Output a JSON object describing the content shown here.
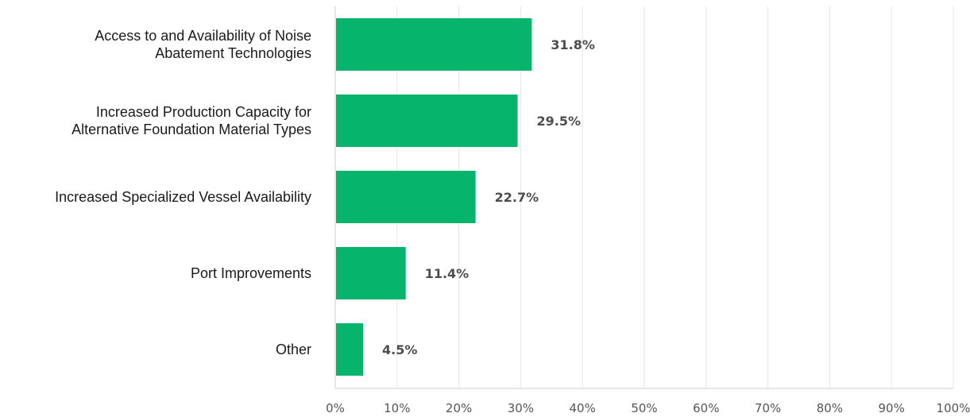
{
  "chart_data": {
    "type": "bar",
    "orientation": "horizontal",
    "categories": [
      [
        "Access to and Availability of Noise",
        "Abatement Technologies"
      ],
      [
        "Increased Production Capacity for",
        "Alternative Foundation Material Types"
      ],
      [
        "Increased Specialized Vessel Availability"
      ],
      [
        "Port Improvements"
      ],
      [
        "Other"
      ]
    ],
    "values": [
      31.8,
      29.5,
      22.7,
      11.4,
      4.5
    ],
    "value_labels": [
      "31.8%",
      "29.5%",
      "22.7%",
      "11.4%",
      "4.5%"
    ],
    "x_ticks": [
      0,
      10,
      20,
      30,
      40,
      50,
      60,
      70,
      80,
      90,
      100
    ],
    "x_tick_labels": [
      "0%",
      "10%",
      "20%",
      "30%",
      "40%",
      "50%",
      "60%",
      "70%",
      "80%",
      "90%",
      "100%"
    ],
    "xlim": [
      0,
      100
    ],
    "grid": "vertical",
    "legend": "none",
    "colors": {
      "bar": "#06b46c",
      "grid": "#e6e6e6",
      "axis": "#cccccc"
    }
  }
}
